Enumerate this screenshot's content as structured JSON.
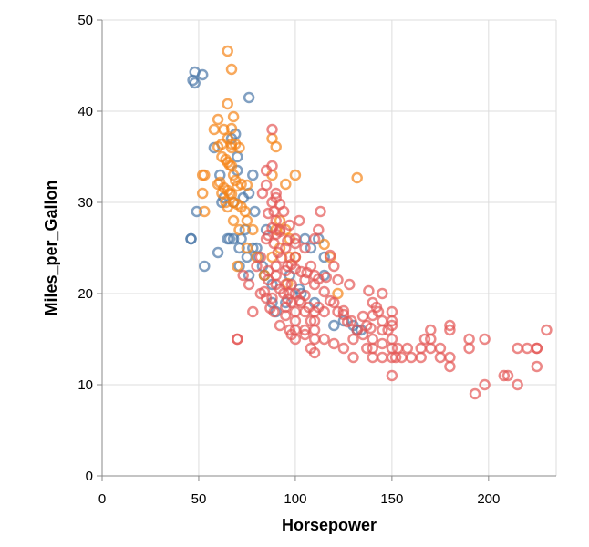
{
  "chart_data": {
    "type": "scatter",
    "xlabel": "Horsepower",
    "ylabel": "Miles_per_Gallon",
    "xlim": [
      0,
      235
    ],
    "ylim": [
      0,
      50
    ],
    "x_ticks": [
      0,
      50,
      100,
      150,
      200
    ],
    "y_ticks": [
      0,
      10,
      20,
      30,
      40,
      50
    ],
    "grid": true,
    "legend": "none",
    "marker": "open circle",
    "series": [
      {
        "color": "#4c78a8",
        "points": [
          [
            46,
            26
          ],
          [
            46,
            26
          ],
          [
            47,
            43.4
          ],
          [
            48,
            44.3
          ],
          [
            48,
            43.1
          ],
          [
            49,
            29.0
          ],
          [
            52,
            44.0
          ],
          [
            53,
            23.0
          ],
          [
            58,
            36.0
          ],
          [
            60,
            24.5
          ],
          [
            61,
            33.0
          ],
          [
            62,
            30.0
          ],
          [
            63,
            30.5
          ],
          [
            66,
            26.0
          ],
          [
            67,
            37.0
          ],
          [
            68,
            26.0
          ],
          [
            68,
            30.0
          ],
          [
            69,
            37.5
          ],
          [
            70,
            33.5
          ],
          [
            71,
            25.0
          ],
          [
            71,
            23.0
          ],
          [
            72,
            26.0
          ],
          [
            73,
            30.5
          ],
          [
            75,
            24.0
          ],
          [
            76,
            41.5
          ],
          [
            76,
            22.0
          ],
          [
            76,
            31.0
          ],
          [
            78,
            33.0
          ],
          [
            78,
            25.0
          ],
          [
            80,
            25.0
          ],
          [
            81,
            24.0
          ],
          [
            83,
            23.0
          ],
          [
            84,
            22.0
          ],
          [
            85,
            27.0
          ],
          [
            88,
            21.0
          ],
          [
            88,
            19.0
          ],
          [
            90,
            18.0
          ],
          [
            95,
            19.0
          ],
          [
            97,
            22.0
          ],
          [
            102,
            20.5
          ],
          [
            103,
            20.0
          ],
          [
            105,
            26.0
          ],
          [
            108,
            25.0
          ],
          [
            110,
            19.0
          ],
          [
            112,
            26.0
          ],
          [
            115,
            24.0
          ],
          [
            115,
            22.0
          ],
          [
            120,
            16.5
          ],
          [
            125,
            17.0
          ],
          [
            130,
            16.5
          ],
          [
            132,
            16.0
          ],
          [
            134,
            16.0
          ],
          [
            70,
            35.0
          ],
          [
            65,
            26.0
          ],
          [
            74,
            27.0
          ],
          [
            79,
            29.0
          ]
        ]
      },
      {
        "color": "#f58518",
        "points": [
          [
            65,
            46.6
          ],
          [
            67,
            44.6
          ],
          [
            65,
            40.8
          ],
          [
            68,
            39.4
          ],
          [
            67,
            38.1
          ],
          [
            60,
            39.1
          ],
          [
            58,
            38.0
          ],
          [
            62,
            36.4
          ],
          [
            63,
            38.0
          ],
          [
            65,
            37.0
          ],
          [
            67,
            36.4
          ],
          [
            67,
            36.0
          ],
          [
            69,
            36.4
          ],
          [
            71,
            36.0
          ],
          [
            60,
            36.1
          ],
          [
            62,
            35.0
          ],
          [
            64,
            34.7
          ],
          [
            65,
            34.4
          ],
          [
            66,
            34.1
          ],
          [
            67,
            34.0
          ],
          [
            68,
            33.0
          ],
          [
            69,
            32.4
          ],
          [
            70,
            31.8
          ],
          [
            72,
            32.0
          ],
          [
            75,
            31.9
          ],
          [
            52,
            33.0
          ],
          [
            53,
            33.0
          ],
          [
            61,
            32.2
          ],
          [
            63,
            31.6
          ],
          [
            65,
            31.3
          ],
          [
            66,
            31.0
          ],
          [
            67,
            30.9
          ],
          [
            68,
            30.0
          ],
          [
            70,
            29.8
          ],
          [
            72,
            29.5
          ],
          [
            74,
            29.0
          ],
          [
            75,
            28.0
          ],
          [
            78,
            27.0
          ],
          [
            52,
            31.0
          ],
          [
            53,
            29.0
          ],
          [
            60,
            32.0
          ],
          [
            62,
            31.0
          ],
          [
            64,
            30.0
          ],
          [
            65,
            29.5
          ],
          [
            68,
            28.0
          ],
          [
            75,
            25.0
          ],
          [
            80,
            24.0
          ],
          [
            84,
            22.0
          ],
          [
            88,
            24.0
          ],
          [
            90,
            27.0
          ],
          [
            92,
            28.0
          ],
          [
            95,
            27.0
          ],
          [
            97,
            26.0
          ],
          [
            97,
            24.0
          ],
          [
            100,
            24.0
          ],
          [
            100,
            33.0
          ],
          [
            95,
            32.0
          ],
          [
            88,
            37.0
          ],
          [
            88,
            33.0
          ],
          [
            90,
            36.1
          ],
          [
            92,
            25.0
          ],
          [
            96,
            21.1
          ],
          [
            115,
            25.4
          ],
          [
            118,
            24.0
          ],
          [
            122,
            20.0
          ],
          [
            132,
            32.7
          ],
          [
            70,
            23.0
          ],
          [
            71,
            27.0
          ]
        ]
      },
      {
        "color": "#e45756",
        "points": [
          [
            70,
            15.0
          ],
          [
            70,
            15.0
          ],
          [
            73,
            22.0
          ],
          [
            76,
            21.0
          ],
          [
            78,
            18.0
          ],
          [
            82,
            20.0
          ],
          [
            85,
            26.0
          ],
          [
            85,
            33.5
          ],
          [
            88,
            38.0
          ],
          [
            88,
            34.0
          ],
          [
            90,
            31.0
          ],
          [
            90,
            28.0
          ],
          [
            90,
            26.5
          ],
          [
            90,
            23.0
          ],
          [
            95,
            21.0
          ],
          [
            95,
            25.0
          ],
          [
            97,
            20.0
          ],
          [
            100,
            18.0
          ],
          [
            100,
            16.0
          ],
          [
            100,
            15.0
          ],
          [
            105,
            18.0
          ],
          [
            105,
            16.0
          ],
          [
            110,
            18.0
          ],
          [
            110,
            16.0
          ],
          [
            110,
            15.0
          ],
          [
            110,
            21.0
          ],
          [
            112,
            21.6
          ],
          [
            115,
            18.0
          ],
          [
            118,
            24.2
          ],
          [
            120,
            23.0
          ],
          [
            120,
            19.0
          ],
          [
            122,
            18.0
          ],
          [
            125,
            17.7
          ],
          [
            129,
            17.0
          ],
          [
            130,
            15.0
          ],
          [
            130,
            13.0
          ],
          [
            132,
            16.0
          ],
          [
            135,
            17.5
          ],
          [
            137,
            14.0
          ],
          [
            139,
            16.2
          ],
          [
            140,
            17.6
          ],
          [
            140,
            15.0
          ],
          [
            140,
            14.0
          ],
          [
            140,
            13.0
          ],
          [
            142,
            18.5
          ],
          [
            145,
            17.0
          ],
          [
            145,
            16.0
          ],
          [
            145,
            14.5
          ],
          [
            145,
            13.0
          ],
          [
            148,
            16.0
          ],
          [
            150,
            18.0
          ],
          [
            150,
            17.0
          ],
          [
            150,
            16.5
          ],
          [
            150,
            15.0
          ],
          [
            150,
            14.0
          ],
          [
            150,
            13.0
          ],
          [
            150,
            11.0
          ],
          [
            152,
            13.0
          ],
          [
            153,
            14.0
          ],
          [
            155,
            13.0
          ],
          [
            158,
            14.0
          ],
          [
            160,
            13.0
          ],
          [
            165,
            14.0
          ],
          [
            165,
            13.0
          ],
          [
            167,
            15.0
          ],
          [
            170,
            16.0
          ],
          [
            170,
            15.0
          ],
          [
            170,
            14.0
          ],
          [
            175,
            14.0
          ],
          [
            175,
            13.0
          ],
          [
            180,
            16.0
          ],
          [
            180,
            16.5
          ],
          [
            180,
            12.0
          ],
          [
            180,
            13.0
          ],
          [
            190,
            15.0
          ],
          [
            190,
            14.0
          ],
          [
            193,
            9.0
          ],
          [
            198,
            15.0
          ],
          [
            198,
            10.0
          ],
          [
            208,
            11.0
          ],
          [
            210,
            11.0
          ],
          [
            215,
            14.0
          ],
          [
            215,
            10.0
          ],
          [
            220,
            14.0
          ],
          [
            225,
            14.0
          ],
          [
            225,
            12.0
          ],
          [
            225,
            14.0
          ],
          [
            230,
            16.0
          ],
          [
            88,
            27.2
          ],
          [
            86,
            28.8
          ],
          [
            83,
            31.0
          ],
          [
            89,
            29.0
          ],
          [
            92,
            27.0
          ],
          [
            94,
            29.0
          ],
          [
            97,
            27.5
          ],
          [
            100,
            26.0
          ],
          [
            100,
            24.0
          ],
          [
            102,
            28.0
          ],
          [
            105,
            25.0
          ],
          [
            108,
            23.0
          ],
          [
            110,
            26.0
          ],
          [
            112,
            27.0
          ],
          [
            113,
            29.0
          ],
          [
            105,
            21.5
          ],
          [
            103,
            22.4
          ],
          [
            98,
            23.2
          ],
          [
            95,
            22.5
          ],
          [
            90,
            22.0
          ],
          [
            92,
            20.5
          ],
          [
            96,
            19.4
          ],
          [
            98,
            19.0
          ],
          [
            100,
            20.0
          ],
          [
            102,
            19.2
          ],
          [
            105,
            19.8
          ],
          [
            107,
            18.5
          ],
          [
            86,
            21.5
          ],
          [
            84,
            20.2
          ],
          [
            88,
            19.5
          ],
          [
            87,
            18.4
          ],
          [
            95,
            17.6
          ],
          [
            100,
            17.0
          ],
          [
            103,
            19.0
          ],
          [
            108,
            17.0
          ],
          [
            110,
            17.0
          ],
          [
            112,
            18.5
          ],
          [
            115,
            20.2
          ],
          [
            118,
            19.2
          ],
          [
            125,
            18.1
          ],
          [
            127,
            16.9
          ],
          [
            135,
            15.5
          ],
          [
            137,
            16.5
          ],
          [
            140,
            19.0
          ],
          [
            143,
            18.0
          ],
          [
            145,
            20.0
          ],
          [
            138,
            20.3
          ],
          [
            128,
            21.0
          ],
          [
            122,
            21.5
          ],
          [
            116,
            21.8
          ],
          [
            110,
            22.0
          ],
          [
            106,
            22.3
          ],
          [
            100,
            22.7
          ],
          [
            96,
            23.0
          ],
          [
            93,
            23.9
          ],
          [
            91,
            24.5
          ],
          [
            89,
            25.5
          ],
          [
            86,
            26.4
          ],
          [
            92,
            26.8
          ],
          [
            96,
            25.8
          ],
          [
            100,
            25.5
          ],
          [
            82,
            24.0
          ],
          [
            80,
            23.0
          ],
          [
            86,
            22.5
          ],
          [
            90,
            21.0
          ],
          [
            94,
            20.0
          ],
          [
            98,
            21.0
          ],
          [
            85,
            19.5
          ],
          [
            89,
            18.0
          ],
          [
            95,
            18.5
          ],
          [
            92,
            16.5
          ],
          [
            97,
            16.0
          ],
          [
            105,
            15.5
          ],
          [
            108,
            14.0
          ],
          [
            115,
            15.0
          ],
          [
            120,
            14.5
          ],
          [
            125,
            14.0
          ],
          [
            110,
            13.5
          ],
          [
            98,
            15.5
          ],
          [
            85,
            31.9
          ],
          [
            88,
            30.0
          ],
          [
            90,
            30.5
          ],
          [
            92,
            29.8
          ]
        ]
      }
    ]
  }
}
